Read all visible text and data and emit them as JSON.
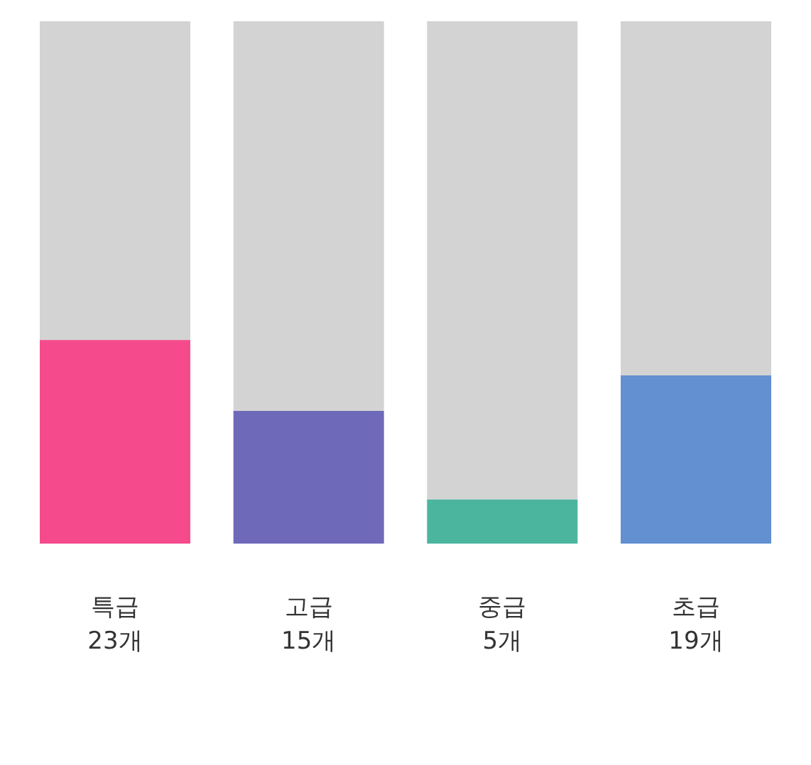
{
  "chart_data": {
    "type": "bar",
    "stacked": true,
    "categories": [
      "특급",
      "고급",
      "중급",
      "초급"
    ],
    "series": [
      {
        "colors": [
          "#f54b8d",
          "#6f69b9",
          "#4bb59e",
          "#6290d0"
        ],
        "values": [
          23,
          15,
          5,
          19
        ],
        "value_labels": [
          "23개",
          "15개",
          "5개",
          "19개"
        ]
      },
      {
        "color": "#d3d3d3",
        "values": [
          36,
          44,
          54,
          40
        ]
      }
    ],
    "ylim": [
      0,
      59
    ]
  }
}
